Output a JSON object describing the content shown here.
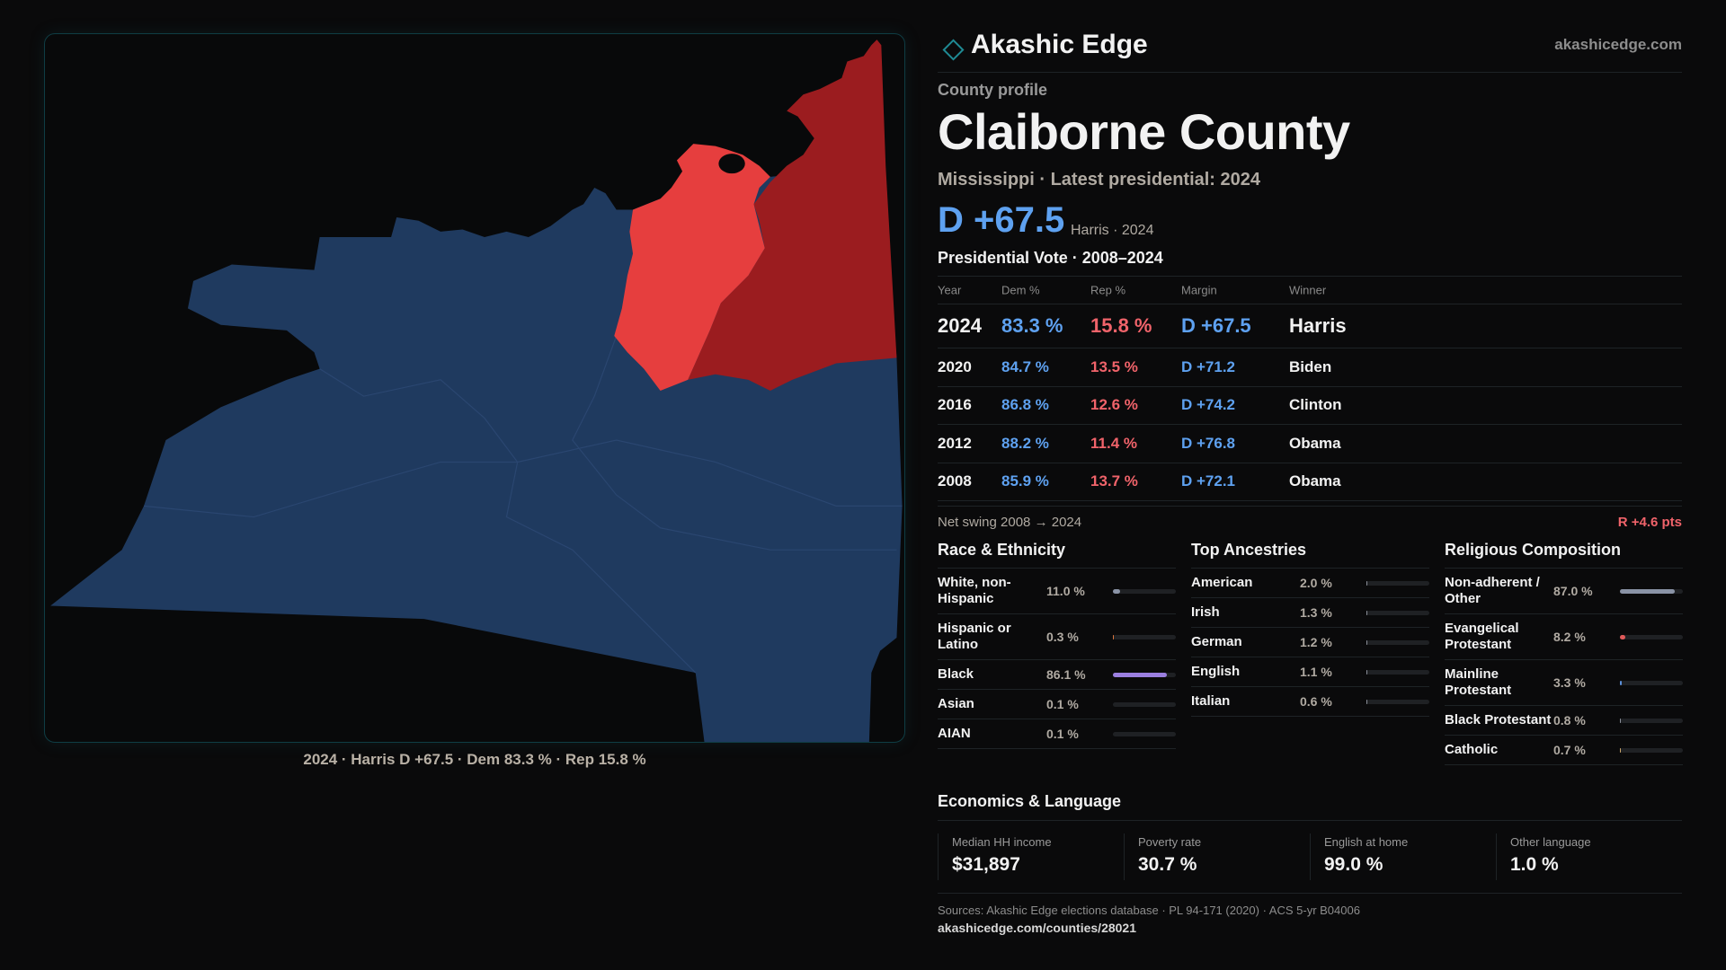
{
  "header": {
    "brand": "Akashic Edge",
    "site": "akashicedge.com"
  },
  "profile": {
    "kicker": "County profile",
    "title": "Claiborne County",
    "subtitle": "Mississippi · Latest presidential: 2024",
    "margin": "D +67.5",
    "margin_note": "Harris · 2024"
  },
  "map": {
    "caption": "2024 · Harris D +67.5 · Dem 83.3 % · Rep 15.8 %"
  },
  "votes": {
    "title": "Presidential Vote · 2008–2024",
    "columns": [
      "Year",
      "Dem %",
      "Rep %",
      "Margin",
      "Winner"
    ],
    "rows": [
      [
        "2024",
        "83.3 %",
        "15.8 %",
        "D +67.5",
        "Harris"
      ],
      [
        "2020",
        "84.7 %",
        "13.5 %",
        "D +71.2",
        "Biden"
      ],
      [
        "2016",
        "86.8 %",
        "12.6 %",
        "D +74.2",
        "Clinton"
      ],
      [
        "2012",
        "88.2 %",
        "11.4 %",
        "D +76.8",
        "Obama"
      ],
      [
        "2008",
        "85.9 %",
        "13.7 %",
        "D +72.1",
        "Obama"
      ]
    ],
    "swing_label": "Net swing 2008 → 2024",
    "swing_value": "R +4.6 pts"
  },
  "sections": [
    {
      "title": "Race & Ethnicity",
      "xlim": [
        0,
        100
      ],
      "items": [
        {
          "label": "White, non-Hispanic",
          "value": 11.0,
          "value_label": "11.0 %",
          "color": "#8a93a6"
        },
        {
          "label": "Hispanic or Latino",
          "value": 0.3,
          "value_label": "0.3 %",
          "color": "#d9763f"
        },
        {
          "label": "Black",
          "value": 86.1,
          "value_label": "86.1 %",
          "color": "#9b7fe0"
        },
        {
          "label": "Asian",
          "value": 0.1,
          "value_label": "0.1 %",
          "color": "#6a8fd0"
        },
        {
          "label": "AIAN",
          "value": 0.1,
          "value_label": "0.1 %",
          "color": "#6aa5a5"
        }
      ]
    },
    {
      "title": "Top Ancestries",
      "xlim": [
        0,
        100
      ],
      "items": [
        {
          "label": "American",
          "value": 2.0,
          "value_label": "2.0 %",
          "color": "#8a8f99"
        },
        {
          "label": "Irish",
          "value": 1.3,
          "value_label": "1.3 %",
          "color": "#8a8f99"
        },
        {
          "label": "German",
          "value": 1.2,
          "value_label": "1.2 %",
          "color": "#8a8f99"
        },
        {
          "label": "English",
          "value": 1.1,
          "value_label": "1.1 %",
          "color": "#8a8f99"
        },
        {
          "label": "Italian",
          "value": 0.6,
          "value_label": "0.6 %",
          "color": "#8a8f99"
        }
      ]
    },
    {
      "title": "Religious Composition",
      "xlim": [
        0,
        100
      ],
      "items": [
        {
          "label": "Non-adherent / Other",
          "value": 87.0,
          "value_label": "87.0 %",
          "color": "#8a93a6"
        },
        {
          "label": "Evangelical Protestant",
          "value": 8.2,
          "value_label": "8.2 %",
          "color": "#e05a5a"
        },
        {
          "label": "Mainline Protestant",
          "value": 3.3,
          "value_label": "3.3 %",
          "color": "#5b8fd9"
        },
        {
          "label": "Black Protestant",
          "value": 0.8,
          "value_label": "0.8 %",
          "color": "#8a8f99"
        },
        {
          "label": "Catholic",
          "value": 0.7,
          "value_label": "0.7 %",
          "color": "#c9a56a"
        }
      ]
    }
  ],
  "economics": {
    "title": "Economics & Language",
    "items": [
      {
        "label": "Median HH income",
        "value": "$31,897"
      },
      {
        "label": "Poverty rate",
        "value": "30.7 %"
      },
      {
        "label": "English at home",
        "value": "99.0 %"
      },
      {
        "label": "Other language",
        "value": "1.0 %"
      }
    ]
  },
  "footer": {
    "sources": "Sources: Akashic Edge elections database · PL 94-171 (2020) · ACS 5-yr B04006",
    "url": "akashicedge.com/counties/28021"
  }
}
